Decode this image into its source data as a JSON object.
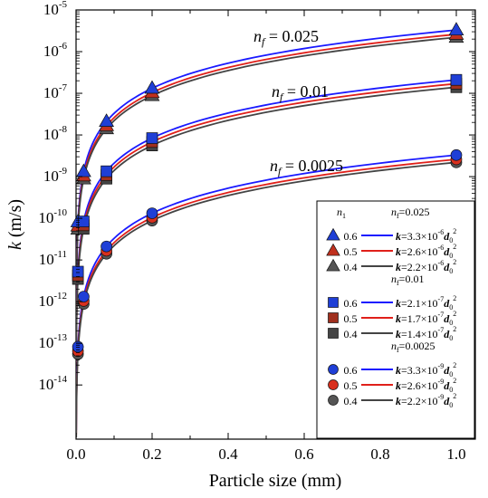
{
  "chart_data": {
    "type": "scatter",
    "xlabel": "Particle size (mm)",
    "ylabel_main": "k",
    "ylabel_unit": " (m/s)",
    "xlim": [
      0.0,
      1.05
    ],
    "ylim_log10": [
      -15.3,
      -5
    ],
    "x_ticks": [
      "0.0",
      "0.2",
      "0.4",
      "0.6",
      "0.8",
      "1.0"
    ],
    "y_ticks": [
      {
        "mant": "10",
        "exp": "-5"
      },
      {
        "mant": "10",
        "exp": "-6"
      },
      {
        "mant": "10",
        "exp": "-7"
      },
      {
        "mant": "10",
        "exp": "-8"
      },
      {
        "mant": "10",
        "exp": "-9"
      },
      {
        "mant": "10",
        "exp": "-10"
      },
      {
        "mant": "10",
        "exp": "-11"
      },
      {
        "mant": "10",
        "exp": "-12"
      },
      {
        "mant": "10",
        "exp": "-13"
      },
      {
        "mant": "10",
        "exp": "-14"
      }
    ],
    "x_points": [
      0.005,
      0.02,
      0.08,
      0.2,
      1.0
    ],
    "group_annotations": [
      "n",
      "f",
      " = 0.025",
      " = 0.01",
      " = 0.0025"
    ],
    "groups": [
      {
        "nf": "0.025",
        "marker": "triangle",
        "series": [
          {
            "n": "0.6",
            "coef": 3.3e-06,
            "exp": "-6",
            "coef_text": "3.3",
            "marker_color": "#1f3fd6",
            "line_color": "#1a1aff"
          },
          {
            "n": "0.5",
            "coef": 2.6e-06,
            "exp": "-6",
            "coef_text": "2.6",
            "marker_color": "#c0301e",
            "line_color": "#e0201a"
          },
          {
            "n": "0.4",
            "coef": 2.2e-06,
            "exp": "-6",
            "coef_text": "2.2",
            "marker_color": "#555555",
            "line_color": "#444444"
          }
        ]
      },
      {
        "nf": "0.01",
        "marker": "square",
        "series": [
          {
            "n": "0.6",
            "coef": 2.1e-07,
            "exp": "-7",
            "coef_text": "2.1",
            "marker_color": "#1f3fd6",
            "line_color": "#1a1aff"
          },
          {
            "n": "0.5",
            "coef": 1.7e-07,
            "exp": "-7",
            "coef_text": "1.7",
            "marker_color": "#a0301e",
            "line_color": "#e0201a"
          },
          {
            "n": "0.4",
            "coef": 1.4e-07,
            "exp": "-7",
            "coef_text": "1.4",
            "marker_color": "#444444",
            "line_color": "#444444"
          }
        ]
      },
      {
        "nf": "0.0025",
        "marker": "circle",
        "series": [
          {
            "n": "0.6",
            "coef": 3.3e-09,
            "exp": "-9",
            "coef_text": "3.3",
            "marker_color": "#1f3fd6",
            "line_color": "#1a1aff"
          },
          {
            "n": "0.5",
            "coef": 2.6e-09,
            "exp": "-9",
            "coef_text": "2.6",
            "marker_color": "#d8301e",
            "line_color": "#e0201a"
          },
          {
            "n": "0.4",
            "coef": 2.2e-09,
            "exp": "-9",
            "coef_text": "2.2",
            "marker_color": "#555555",
            "line_color": "#444444"
          }
        ]
      }
    ],
    "legend": {
      "placement": "bottom-right",
      "n_header": "n",
      "n_header_sub": "1",
      "nf_prefix": "n",
      "nf_sub": "f",
      "eq_k": "k",
      "eq_mid": "×10",
      "eq_d": "d",
      "eq_d_sub": "0",
      "eq_d_sup": "2"
    }
  }
}
